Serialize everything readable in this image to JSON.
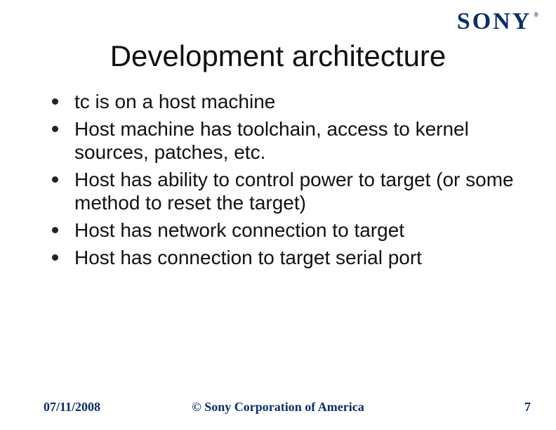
{
  "logo": {
    "text": "SONY",
    "reg": "®"
  },
  "title": "Development architecture",
  "bullets": [
    "tc is on a host machine",
    "Host machine has toolchain, access to kernel sources, patches, etc.",
    "Host has ability to control power to target (or some method to reset the target)",
    "Host has network connection to target",
    "Host has connection to target serial port"
  ],
  "footer": {
    "date": "07/11/2008",
    "copyright": "© Sony Corporation of America",
    "page": "7"
  },
  "style": {
    "background": "#ffffff",
    "logo_color": "#0b2e66",
    "title_fontsize": 42,
    "bullet_fontsize": 28,
    "footer_fontsize": 18,
    "footer_color": "#0b2e66",
    "bullet_marker_color": "#222222"
  }
}
